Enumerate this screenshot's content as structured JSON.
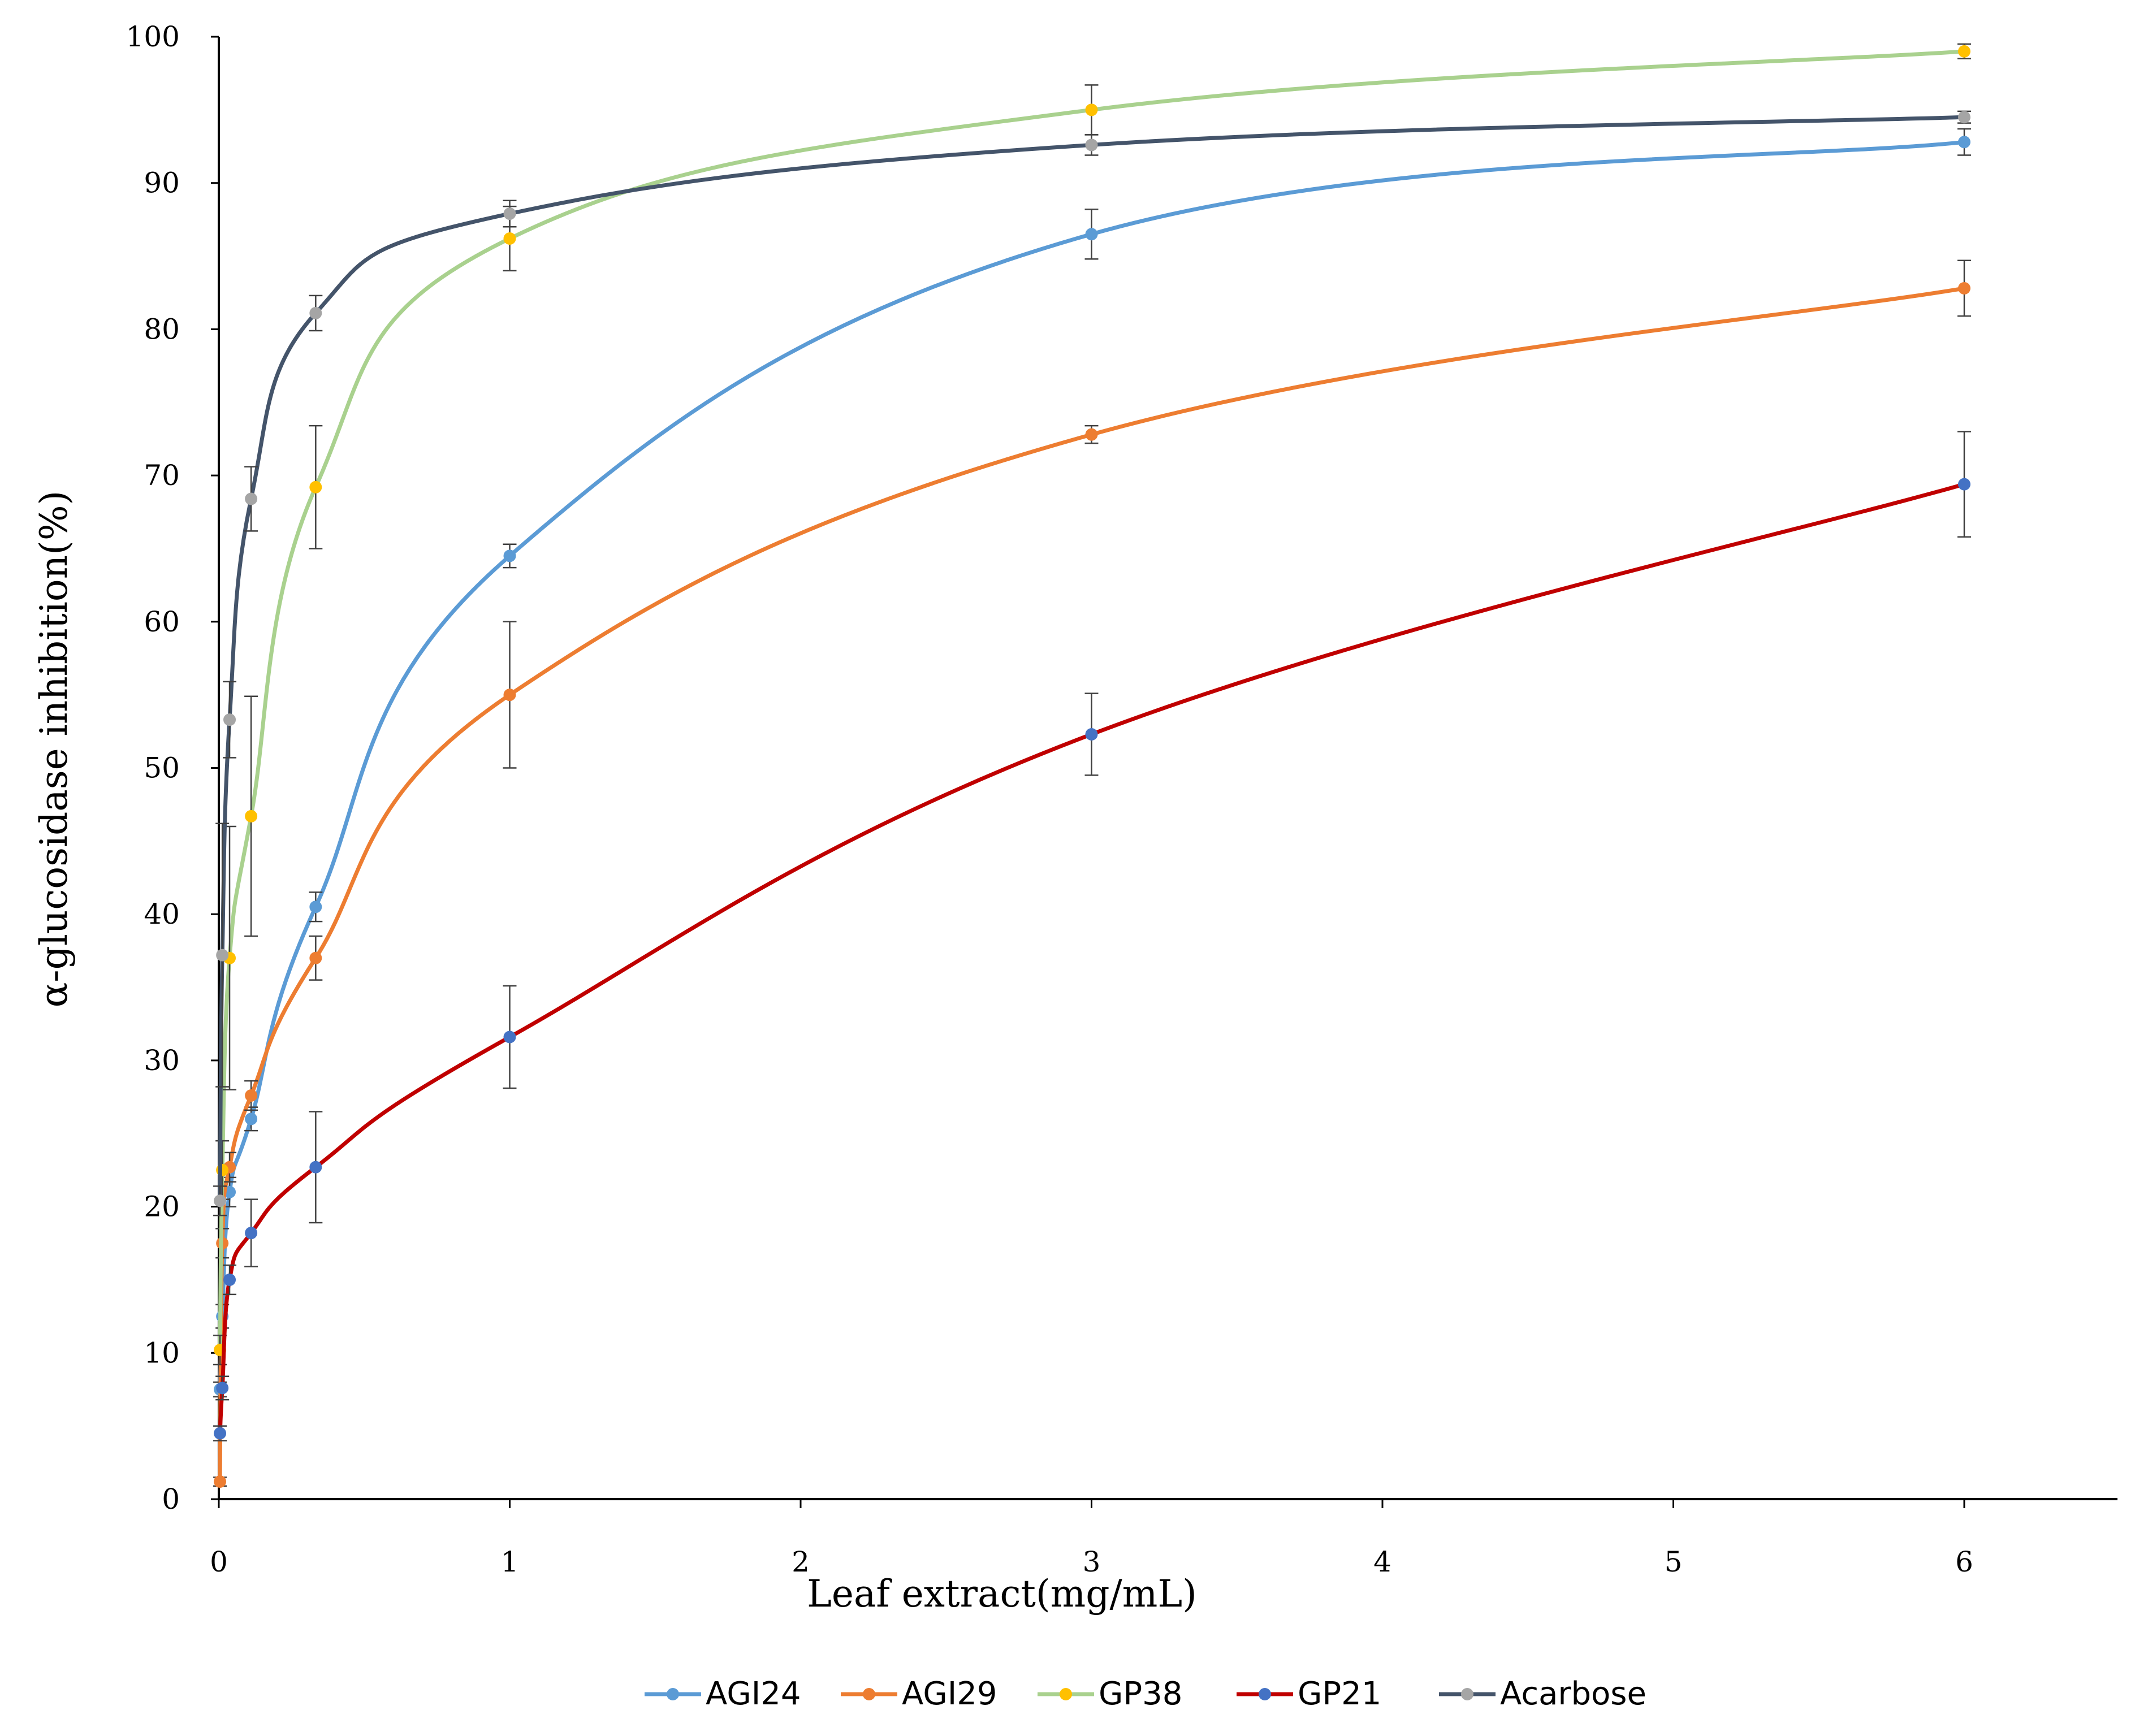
{
  "chart_data": {
    "type": "line",
    "xlabel": "Leaf extract(mg/mL)",
    "ylabel": "α-glucosidase inhibition(%)",
    "xlim": [
      0,
      6.5
    ],
    "ylim": [
      0,
      100
    ],
    "xticks": [
      0,
      1,
      2,
      3,
      4,
      5,
      6
    ],
    "yticks": [
      0,
      10,
      20,
      30,
      40,
      50,
      60,
      70,
      80,
      90,
      100
    ],
    "grid": false,
    "legend_position": "bottom",
    "x": [
      0.004,
      0.012,
      0.037,
      0.111,
      0.333,
      1,
      3,
      6
    ],
    "series": [
      {
        "name": "AGI24",
        "color": "#5B9BD5",
        "values": [
          7.5,
          12.5,
          21.0,
          26.0,
          40.5,
          64.5,
          86.5,
          92.8
        ],
        "errors": [
          0.5,
          0.8,
          1.0,
          0.8,
          1.0,
          0.8,
          1.7,
          0.9
        ]
      },
      {
        "name": "AGI29",
        "color": "#ED7D31",
        "values": [
          1.2,
          17.5,
          22.7,
          27.6,
          37.0,
          55.0,
          72.8,
          82.8
        ],
        "errors": [
          0.3,
          1.0,
          1.0,
          1.0,
          1.5,
          5.0,
          0.6,
          1.9
        ]
      },
      {
        "name": "GP38",
        "color": "#A9D18E",
        "values": [
          10.2,
          22.5,
          37.0,
          46.7,
          69.2,
          86.2,
          95.0,
          99.0
        ],
        "errors": [
          1.0,
          2.0,
          9.0,
          8.2,
          4.2,
          2.2,
          1.7,
          0.5
        ]
      },
      {
        "name": "GP21",
        "color": "#C00000",
        "values": [
          4.5,
          7.6,
          15.0,
          18.2,
          22.7,
          31.6,
          52.3,
          69.4
        ],
        "errors": [
          0.5,
          0.8,
          1.0,
          2.3,
          3.8,
          3.5,
          2.8,
          3.6
        ]
      },
      {
        "name": "Acarbose",
        "color": "#44546A",
        "values": [
          20.4,
          37.2,
          53.3,
          68.4,
          81.1,
          87.9,
          92.6,
          94.5
        ],
        "errors": [
          1.0,
          9.0,
          2.6,
          2.2,
          1.2,
          0.9,
          0.7,
          0.4
        ]
      }
    ],
    "marker_colors": {
      "AGI24": "#5B9BD5",
      "AGI29": "#ED7D31",
      "GP38": "#FFC000",
      "GP21": "#4472C4",
      "Acarbose": "#A5A5A5"
    }
  }
}
